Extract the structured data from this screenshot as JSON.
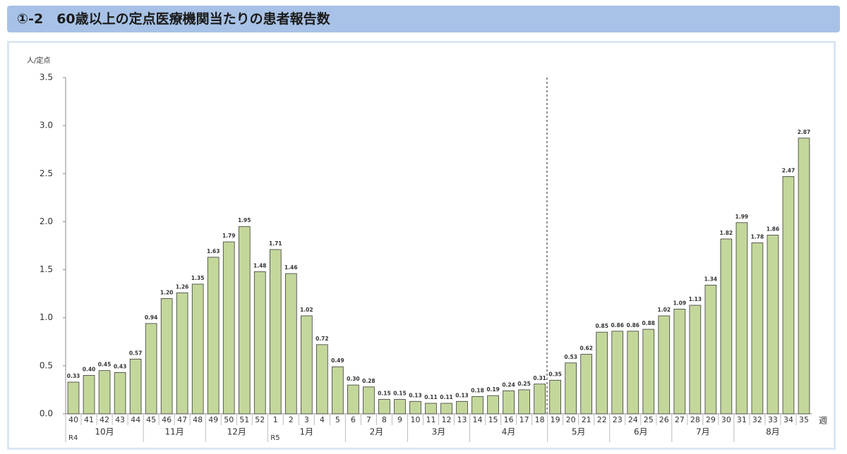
{
  "chart_data": {
    "type": "bar",
    "title": "①-2　60歳以上の定点医療機関当たりの患者報告数",
    "y_label": "人/定点",
    "x_label": "週",
    "categories": [
      "40",
      "41",
      "42",
      "43",
      "44",
      "45",
      "46",
      "47",
      "48",
      "49",
      "50",
      "51",
      "52",
      "1",
      "2",
      "3",
      "4",
      "5",
      "6",
      "7",
      "8",
      "9",
      "10",
      "11",
      "12",
      "13",
      "14",
      "15",
      "16",
      "17",
      "18",
      "19",
      "20",
      "21",
      "22",
      "23",
      "24",
      "25",
      "26",
      "27",
      "28",
      "29",
      "30",
      "31",
      "32",
      "33",
      "34",
      "35"
    ],
    "months": [
      "10月",
      null,
      null,
      null,
      null,
      "11月",
      null,
      null,
      null,
      "12月",
      null,
      null,
      null,
      "1月",
      null,
      null,
      null,
      null,
      "2月",
      null,
      null,
      null,
      "3月",
      null,
      null,
      null,
      "4月",
      null,
      null,
      null,
      null,
      "5月",
      null,
      null,
      null,
      "6月",
      null,
      null,
      null,
      "7月",
      null,
      null,
      null,
      "8月",
      null,
      null,
      null,
      null
    ],
    "eras": [
      "R4",
      null,
      null,
      null,
      null,
      null,
      null,
      null,
      null,
      null,
      null,
      null,
      null,
      "R5",
      null,
      null,
      null,
      null,
      null,
      null,
      null,
      null,
      null,
      null,
      null,
      null,
      null,
      null,
      null,
      null,
      null,
      null,
      null,
      null,
      null,
      null,
      null,
      null,
      null,
      null,
      null,
      null,
      null,
      null,
      null,
      null,
      null,
      null
    ],
    "values": [
      0.33,
      0.4,
      0.45,
      0.43,
      0.57,
      0.94,
      1.2,
      1.26,
      1.35,
      1.63,
      1.79,
      1.95,
      1.48,
      1.71,
      1.46,
      1.02,
      0.72,
      0.49,
      0.3,
      0.28,
      0.15,
      0.15,
      0.13,
      0.11,
      0.11,
      0.13,
      0.18,
      0.19,
      0.24,
      0.25,
      0.31,
      0.35,
      0.53,
      0.62,
      0.85,
      0.86,
      0.86,
      0.88,
      1.02,
      1.09,
      1.13,
      1.34,
      1.82,
      1.99,
      1.78,
      1.86,
      2.47,
      2.87
    ],
    "value_labels": [
      "0.33",
      "0.40",
      "0.45",
      "0.43",
      "0.57",
      "0.94",
      "1.20",
      "1.26",
      "1.35",
      "1.63",
      "1.79",
      "1.95",
      "1.48",
      "1.71",
      "1.46",
      "1.02",
      "0.72",
      "0.49",
      "0.30",
      "0.28",
      "0.15",
      "0.15",
      "0.13",
      "0.11",
      "0.11",
      "0.13",
      "0.18",
      "0.19",
      "0.24",
      "0.25",
      "0.31",
      "0.35",
      "0.53",
      "0.62",
      "0.85",
      "0.86",
      "0.86",
      "0.88",
      "1.02",
      "1.09",
      "1.13",
      "1.34",
      "1.82",
      "1.99",
      "1.78",
      "1.86",
      "2.47",
      "2.87"
    ],
    "color": "#c4d79b",
    "ylim": [
      0,
      3.5
    ],
    "yticks": [
      {
        "value": 0,
        "label": "0.0"
      },
      0.5,
      {
        "value": 1,
        "label": "1.0"
      },
      1.5,
      {
        "value": 2,
        "label": "2.0"
      },
      2.5,
      {
        "value": 3,
        "label": "3.0"
      },
      3.5
    ],
    "grid": false
  }
}
